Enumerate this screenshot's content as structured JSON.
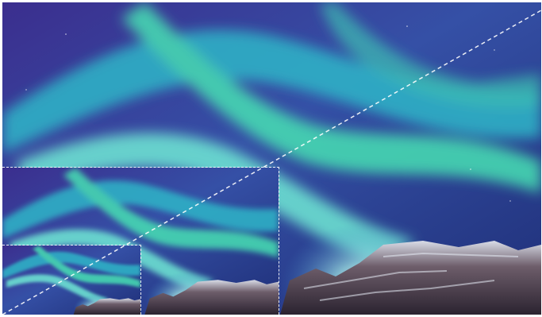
{
  "figure": {
    "subject": "aurora-over-snowy-mountains",
    "colors": {
      "sky_top": "#2a2f86",
      "sky_mid": "#3a58a8",
      "aurora_green": "#4fe0b8",
      "aurora_teal": "#2bb3c4",
      "aurora_glow": "#e9fbff",
      "rock_dark": "#3a2f3a",
      "snow": "#d9dff0",
      "guide_line": "#ffffff"
    },
    "views": [
      {
        "name": "full",
        "scale": 1.0
      },
      {
        "name": "medium",
        "scale": 0.5
      },
      {
        "name": "small",
        "scale": 0.25
      }
    ]
  }
}
